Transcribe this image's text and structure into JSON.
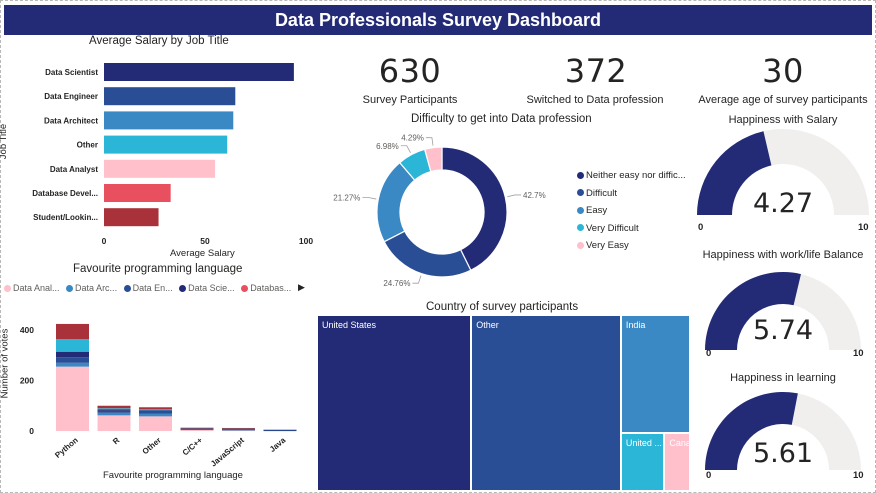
{
  "dashboard": {
    "title": "Data Professionals Survey Dashboard"
  },
  "kpis": [
    {
      "value": "630",
      "label": "Survey Participants"
    },
    {
      "value": "372",
      "label": "Switched to Data profession"
    },
    {
      "value": "30",
      "label": "Average age of survey participants"
    }
  ],
  "chart_data": [
    {
      "type": "bar",
      "orientation": "horizontal",
      "title": "Average Salary by Job Title",
      "xlabel": "Average Salary",
      "ylabel": "Job Title",
      "categories": [
        "Data Scientist",
        "Data Engineer",
        "Data Architect",
        "Other",
        "Data Analyst",
        "Database Devel...",
        "Student/Lookin..."
      ],
      "values": [
        94,
        65,
        64,
        61,
        55,
        33,
        27
      ],
      "colors": [
        "#232b77",
        "#2a4e96",
        "#3a88c4",
        "#2bb5d6",
        "#ffc0cb",
        "#e9505f",
        "#a8313a"
      ],
      "xlim": [
        0,
        100
      ],
      "xticks": [
        "0",
        "50",
        "100"
      ],
      "grid": false
    },
    {
      "type": "bar",
      "stacked": true,
      "title": "Favourite programming language",
      "xlabel": "Favourite programming language",
      "ylabel": "Number of votes",
      "legend_position": "top",
      "legend_labels": [
        "Data Anal...",
        "Data Arc...",
        "Data En...",
        "Data Scie...",
        "Databas..."
      ],
      "categories": [
        "Python",
        "R",
        "Other",
        "C/C++",
        "JavaScript",
        "Java"
      ],
      "yticks": [
        "0",
        "200",
        "400"
      ],
      "ylim": [
        0,
        440
      ],
      "series": [
        {
          "name": "Data Analyst",
          "color": "#ffc0cb",
          "values": [
            255,
            62,
            58,
            5,
            3,
            2
          ]
        },
        {
          "name": "Data Architect",
          "color": "#3a88c4",
          "values": [
            15,
            10,
            10,
            2,
            2,
            1
          ]
        },
        {
          "name": "Data Engineer",
          "color": "#2a4e96",
          "values": [
            22,
            8,
            8,
            2,
            2,
            1
          ]
        },
        {
          "name": "Data Scientist",
          "color": "#232b77",
          "values": [
            22,
            6,
            6,
            2,
            3,
            1
          ]
        },
        {
          "name": "Database Developer",
          "color": "#2bb5d6",
          "values": [
            50,
            4,
            4,
            1,
            1,
            0
          ]
        },
        {
          "name": "Student/Looking",
          "color": "#a8313a",
          "values": [
            60,
            10,
            8,
            1,
            1,
            0
          ]
        }
      ]
    },
    {
      "type": "pie",
      "donut": true,
      "title": "Difficulty to get into Data profession",
      "legend_position": "right",
      "categories": [
        "Neither easy nor diffic...",
        "Difficult",
        "Easy",
        "Very Difficult",
        "Very Easy"
      ],
      "values": [
        42.7,
        24.76,
        21.27,
        6.98,
        4.29
      ],
      "data_labels": [
        "42.7%",
        "24.76%",
        "21.27%",
        "6.98%",
        "4.29%"
      ],
      "colors": [
        "#232b77",
        "#2a4e96",
        "#3a88c4",
        "#2bb5d6",
        "#ffc0cb"
      ]
    },
    {
      "type": "treemap",
      "title": "Country of survey participants",
      "categories": [
        "United States",
        "Other",
        "India",
        "United ...",
        "Canada"
      ],
      "values": [
        262,
        254,
        77,
        24,
        13
      ],
      "colors": [
        "#232b77",
        "#2a4e96",
        "#3a88c4",
        "#2bb5d6",
        "#ffc0cb"
      ]
    }
  ],
  "gauges": [
    {
      "title": "Happiness with Salary",
      "value": "4.27",
      "fraction": 0.427,
      "min": "0",
      "max": "10"
    },
    {
      "title": "Happiness with work/life Balance",
      "value": "5.74",
      "fraction": 0.574,
      "min": "0",
      "max": "10"
    },
    {
      "title": "Happiness in learning",
      "value": "5.61",
      "fraction": 0.561,
      "min": "0",
      "max": "10"
    }
  ],
  "colors": {
    "header": "#232b77",
    "gauge_fill": "#232b77",
    "gauge_track": "#f0efee"
  }
}
